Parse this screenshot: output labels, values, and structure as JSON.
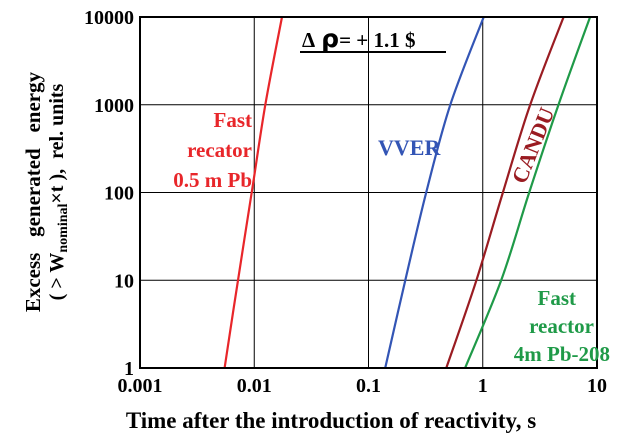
{
  "chart_data": {
    "type": "line",
    "xlabel": "Time after the introduction of reactivity, s",
    "ylabel_line1": "Excess   generated   energy",
    "ylabel_line2_prefix": "( > W",
    "ylabel_line2_sub": "nominal",
    "ylabel_line2_suffix": "×t ),  rel. units",
    "x_scale": "log",
    "y_scale": "log",
    "xlim": [
      0.001,
      10
    ],
    "ylim": [
      1,
      10000
    ],
    "x_ticks": [
      {
        "value": 0.001,
        "label": "0.001"
      },
      {
        "value": 0.01,
        "label": "0.01"
      },
      {
        "value": 0.1,
        "label": "0.1"
      },
      {
        "value": 1,
        "label": "1"
      },
      {
        "value": 10,
        "label": "10"
      }
    ],
    "y_ticks": [
      {
        "value": 1,
        "label": "1"
      },
      {
        "value": 10,
        "label": "10"
      },
      {
        "value": 100,
        "label": "100"
      },
      {
        "value": 1000,
        "label": "1000"
      },
      {
        "value": 10000,
        "label": "10000"
      }
    ],
    "grid": true,
    "annotation": {
      "delta": "Δ",
      "rho": "ρ",
      "value": "= + 1.1 $"
    },
    "series": [
      {
        "name_lines": [
          "Fast",
          "recator",
          "0.5 m Pb"
        ],
        "color": "#e8262a",
        "points": [
          [
            0.0055,
            1
          ],
          [
            0.0072,
            10
          ],
          [
            0.0095,
            100
          ],
          [
            0.0125,
            1000
          ],
          [
            0.0175,
            10000
          ]
        ]
      },
      {
        "name_lines": [
          "VVER"
        ],
        "color": "#3355b5",
        "points": [
          [
            0.14,
            1
          ],
          [
            0.21,
            10
          ],
          [
            0.32,
            100
          ],
          [
            0.52,
            1000
          ],
          [
            1.02,
            10000
          ]
        ]
      },
      {
        "name_lines": [
          "CANDU"
        ],
        "color": "#9a1c22",
        "points": [
          [
            0.48,
            1
          ],
          [
            0.88,
            10
          ],
          [
            1.5,
            100
          ],
          [
            2.6,
            1000
          ],
          [
            5.1,
            10000
          ]
        ]
      },
      {
        "name_lines": [
          "Fast",
          "reactor",
          "4m Pb-208"
        ],
        "color": "#1f9a48",
        "points": [
          [
            0.7,
            1
          ],
          [
            1.45,
            10
          ],
          [
            2.55,
            100
          ],
          [
            4.6,
            1000
          ],
          [
            8.7,
            10000
          ]
        ]
      }
    ]
  }
}
